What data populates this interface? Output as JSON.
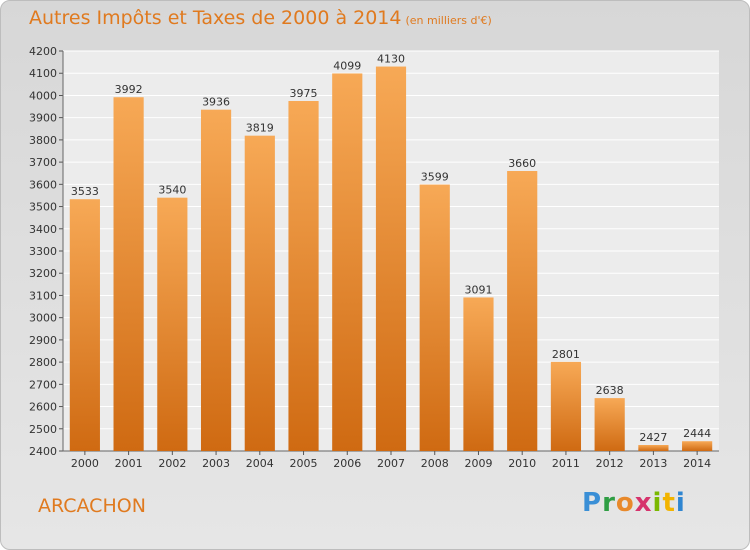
{
  "title": "Autres Impôts et Taxes de 2000 à 2014",
  "subtitle": "(en milliers d'€)",
  "city": "ARCACHON",
  "logo": {
    "letters": [
      "P",
      "r",
      "o",
      "x",
      "i",
      "t",
      "i"
    ],
    "colors": [
      "#3a8fd6",
      "#2f9e44",
      "#e8892b",
      "#d6336c",
      "#7ab800",
      "#f2b400",
      "#2f86d1"
    ]
  },
  "colors": {
    "bar_top": "#f7a956",
    "bar_bottom": "#cf6a12",
    "accent": "#e07a1f"
  },
  "chart_data": {
    "type": "bar",
    "categories": [
      "2000",
      "2001",
      "2002",
      "2003",
      "2004",
      "2005",
      "2006",
      "2007",
      "2008",
      "2009",
      "2010",
      "2011",
      "2012",
      "2013",
      "2014"
    ],
    "values": [
      3533,
      3992,
      3540,
      3936,
      3819,
      3975,
      4099,
      4130,
      3599,
      3091,
      3660,
      2801,
      2638,
      2427,
      2444
    ],
    "ylim": [
      2400,
      4200
    ],
    "yticks": [
      2400,
      2500,
      2600,
      2700,
      2800,
      2900,
      3000,
      3100,
      3200,
      3300,
      3400,
      3500,
      3600,
      3700,
      3800,
      3900,
      4000,
      4100,
      4200
    ],
    "grid": true
  }
}
